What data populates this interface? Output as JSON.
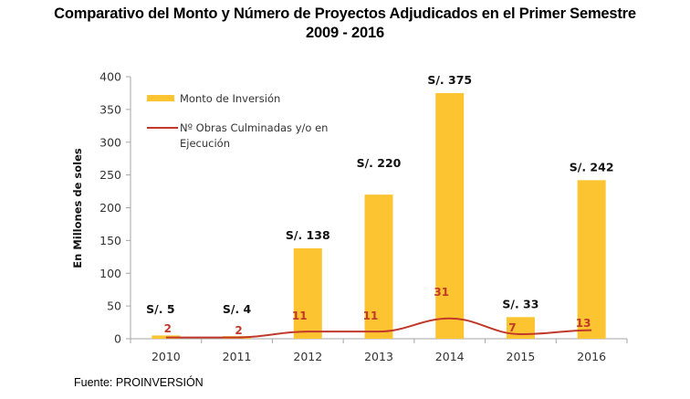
{
  "chart_data": {
    "type": "bar",
    "title_line1": "Comparativo del Monto y Número de Proyectos Adjudicados en el Primer Semestre",
    "title_line2": "2009 - 2016",
    "ylabel": "En Millones de soles",
    "xlabel": "",
    "ylim": [
      0,
      400
    ],
    "yticks": [
      "0",
      "50",
      "100",
      "150",
      "200",
      "250",
      "300",
      "350",
      "400"
    ],
    "yticks_values": [
      0,
      50,
      100,
      150,
      200,
      250,
      300,
      350,
      400
    ],
    "categories": [
      "2010",
      "2011",
      "2012",
      "2013",
      "2014",
      "2015",
      "2016"
    ],
    "series": [
      {
        "name": "Monto de Inversión",
        "kind": "bar",
        "color": "#fdc431",
        "values": [
          5,
          4,
          138,
          220,
          375,
          33,
          242
        ],
        "labels": [
          "S/. 5",
          "S/. 4",
          "S/. 138",
          "S/. 220",
          "S/. 375",
          "S/. 33",
          "S/. 242"
        ]
      },
      {
        "name_line1": "Nº Obras Culminadas y/o en",
        "name_line2": "Ejecución",
        "kind": "line",
        "color": "#c0392b",
        "values": [
          2,
          2,
          11,
          11,
          31,
          7,
          13
        ],
        "labels": [
          "2",
          "2",
          "11",
          "11",
          "31",
          "7",
          "13"
        ]
      }
    ],
    "legend_position": "top-left",
    "grid": false,
    "source": "Fuente: PROINVERSIÓN"
  }
}
